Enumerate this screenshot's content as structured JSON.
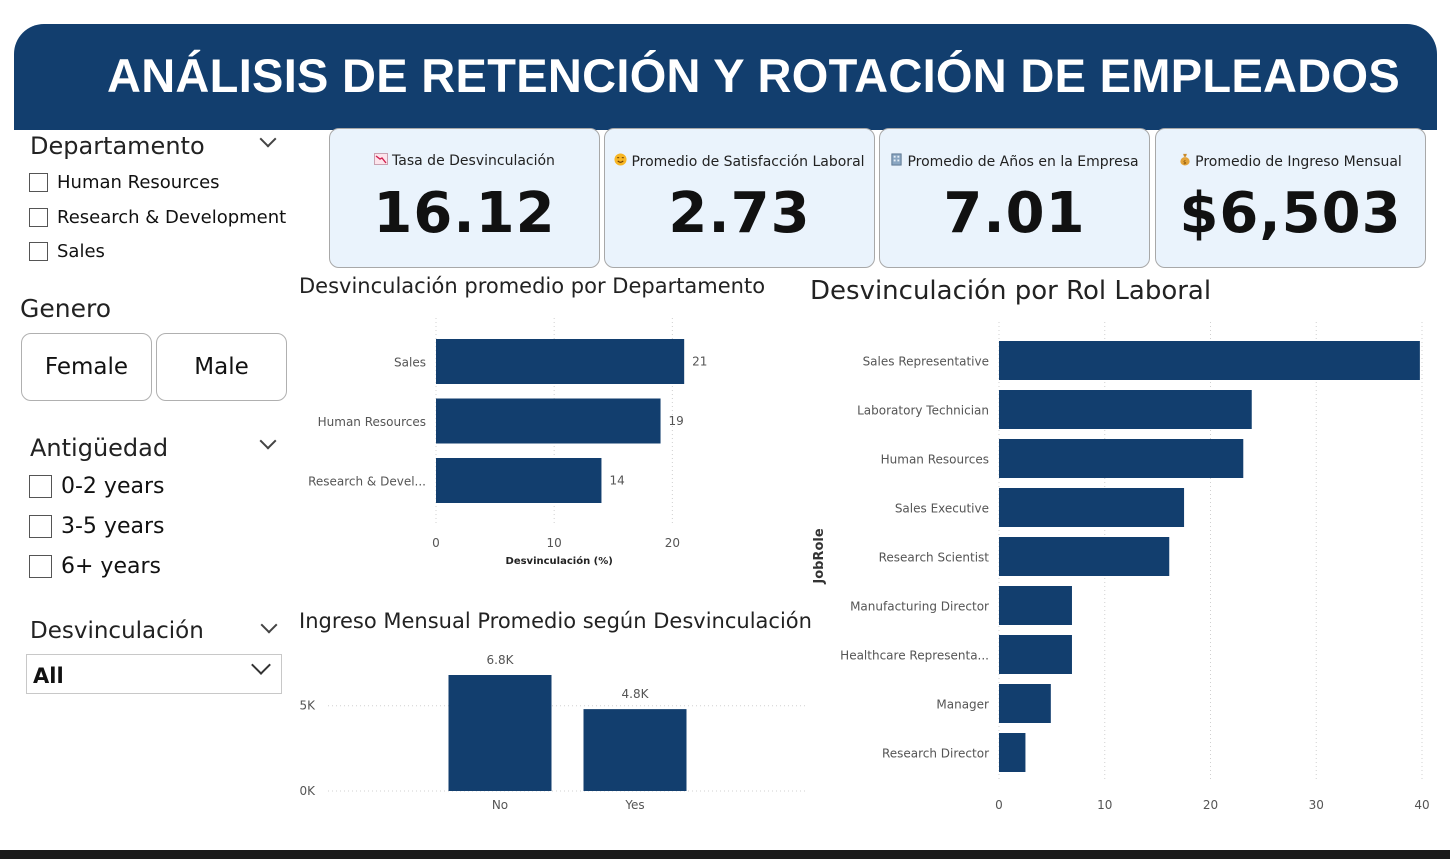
{
  "header": {
    "title": "ANÁLISIS DE RETENCIÓN Y ROTACIÓN DE EMPLEADOS"
  },
  "filters": {
    "departamento": {
      "title": "Departamento",
      "options": [
        "Human Resources",
        "Research & Development",
        "Sales"
      ]
    },
    "genero": {
      "title": "Genero",
      "options": [
        "Female",
        "Male"
      ]
    },
    "antiguedad": {
      "title": "Antigüedad",
      "options": [
        "0-2 years",
        "3-5 years",
        "6+ years"
      ]
    },
    "desvinculacion": {
      "title": "Desvinculación",
      "selected": "All"
    }
  },
  "kpis": [
    {
      "icon": "chart-down-icon",
      "label": "Tasa de Desvinculación",
      "value": "16.12"
    },
    {
      "icon": "smile-icon",
      "label": "Promedio de Satisfacción Laboral",
      "value": "2.73"
    },
    {
      "icon": "building-icon",
      "label": "Promedio de Años en la Empresa",
      "value": "7.01"
    },
    {
      "icon": "money-bag-icon",
      "label": "Promedio de Ingreso Mensual",
      "value": "$6,503"
    }
  ],
  "colors": {
    "brand": "#123e6e",
    "bar": "#123e6e",
    "card_bg": "#eaf3fc"
  },
  "chart_data": [
    {
      "id": "dept",
      "type": "bar",
      "orientation": "horizontal",
      "title": "Desvinculación promedio por Departamento",
      "categories": [
        "Sales",
        "Human Resources",
        "Research & Devel..."
      ],
      "values": [
        21,
        19,
        14
      ],
      "data_labels": [
        "21",
        "19",
        "14"
      ],
      "xlabel": "Desvinculación (%)",
      "xticks": [
        0,
        10,
        20
      ],
      "xtick_labels": [
        "0",
        "10",
        "20"
      ],
      "xlim": [
        0,
        22
      ]
    },
    {
      "id": "income",
      "type": "bar",
      "orientation": "vertical",
      "title": "Ingreso Mensual Promedio según Desvinculación",
      "categories": [
        "No",
        "Yes"
      ],
      "values": [
        6800,
        4800
      ],
      "data_labels": [
        "6.8K",
        "4.8K"
      ],
      "yticks": [
        0,
        5000
      ],
      "ytick_labels": [
        "0K",
        "5K"
      ],
      "ylim": [
        0,
        7500
      ]
    },
    {
      "id": "role",
      "type": "bar",
      "orientation": "horizontal",
      "title": "Desvinculación por Rol Laboral",
      "categories": [
        "Sales Representative",
        "Laboratory Technician",
        "Human Resources",
        "Sales Executive",
        "Research Scientist",
        "Manufacturing Director",
        "Healthcare Representa...",
        "Manager",
        "Research Director"
      ],
      "values": [
        39.8,
        23.9,
        23.1,
        17.5,
        16.1,
        6.9,
        6.9,
        4.9,
        2.5
      ],
      "ylabel": "JobRole",
      "xticks": [
        0,
        10,
        20,
        30,
        40
      ],
      "xtick_labels": [
        "0",
        "10",
        "20",
        "30",
        "40"
      ],
      "xlim": [
        0,
        40
      ]
    }
  ]
}
